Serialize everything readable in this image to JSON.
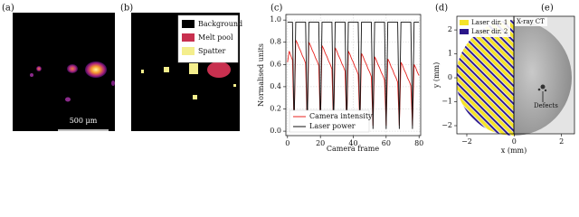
{
  "panel_a": {
    "label": "(a)",
    "scale_bar": "500 μm"
  },
  "panel_b": {
    "label": "(b)",
    "legend": [
      "Background",
      "Melt pool",
      "Spatter"
    ]
  },
  "chart_data": {
    "type": "line",
    "label": "(c)",
    "xlabel": "Camera frame",
    "ylabel": "Normalised units",
    "x": [
      0,
      1,
      2,
      3,
      4,
      5,
      6,
      7,
      8,
      9,
      10,
      11,
      12,
      13,
      14,
      15,
      16,
      17,
      18,
      19,
      20,
      21,
      22,
      23,
      24,
      25,
      26,
      27,
      28,
      29,
      30,
      31,
      32,
      33,
      34,
      35,
      36,
      37,
      38,
      39,
      40,
      41,
      42,
      43,
      44,
      45,
      46,
      47,
      48,
      49,
      50,
      51,
      52,
      53,
      54,
      55,
      56,
      57,
      58,
      59,
      60,
      61,
      62,
      63,
      64,
      65,
      66,
      67,
      68,
      69,
      70,
      71,
      72,
      73,
      74,
      75,
      76,
      77,
      78,
      79,
      80
    ],
    "series": [
      {
        "name": "Camera intensity",
        "color": "#e8231f",
        "values": [
          0.62,
          0.72,
          0.68,
          0.64,
          0.05,
          0.82,
          0.79,
          0.75,
          0.72,
          0.68,
          0.65,
          0.61,
          0.05,
          0.8,
          0.77,
          0.73,
          0.7,
          0.66,
          0.63,
          0.59,
          0.05,
          0.77,
          0.74,
          0.7,
          0.67,
          0.63,
          0.6,
          0.56,
          0.05,
          0.75,
          0.72,
          0.68,
          0.65,
          0.61,
          0.58,
          0.54,
          0.05,
          0.72,
          0.69,
          0.65,
          0.62,
          0.58,
          0.55,
          0.51,
          0.05,
          0.7,
          0.67,
          0.63,
          0.6,
          0.56,
          0.53,
          0.49,
          0.05,
          0.67,
          0.64,
          0.6,
          0.57,
          0.53,
          0.5,
          0.46,
          0.05,
          0.65,
          0.62,
          0.58,
          0.55,
          0.51,
          0.48,
          0.44,
          0.05,
          0.62,
          0.59,
          0.55,
          0.52,
          0.48,
          0.45,
          0.41,
          0.05,
          0.6,
          0.57,
          0.53,
          0.5
        ]
      },
      {
        "name": "Laser power",
        "color": "#111111",
        "values": [
          0.98,
          0.98,
          0.98,
          0.98,
          0.02,
          0.98,
          0.98,
          0.98,
          0.98,
          0.98,
          0.98,
          0.98,
          0.02,
          0.98,
          0.98,
          0.98,
          0.98,
          0.98,
          0.98,
          0.98,
          0.02,
          0.98,
          0.98,
          0.98,
          0.98,
          0.98,
          0.98,
          0.98,
          0.02,
          0.98,
          0.98,
          0.98,
          0.98,
          0.98,
          0.98,
          0.98,
          0.02,
          0.98,
          0.98,
          0.98,
          0.98,
          0.98,
          0.98,
          0.98,
          0.02,
          0.98,
          0.98,
          0.98,
          0.98,
          0.98,
          0.98,
          0.98,
          0.02,
          0.98,
          0.98,
          0.98,
          0.98,
          0.98,
          0.98,
          0.98,
          0.02,
          0.98,
          0.98,
          0.98,
          0.98,
          0.98,
          0.98,
          0.98,
          0.02,
          0.98,
          0.98,
          0.98,
          0.98,
          0.98,
          0.98,
          0.98,
          0.02,
          0.98,
          0.98,
          0.98,
          0.98
        ]
      }
    ],
    "xlim": [
      -1,
      81
    ],
    "ylim": [
      -0.04,
      1.05
    ],
    "xticks": [
      0,
      20,
      40,
      60,
      80
    ],
    "yticks": [
      {
        "value": 0,
        "label": "0.0"
      },
      0.2,
      0.4,
      0.6,
      0.8,
      {
        "value": 1,
        "label": "1.0"
      }
    ],
    "grid": true,
    "legend": "lower left"
  },
  "panel_d": {
    "label": "(d)",
    "legend": [
      "Laser dir. 1",
      "Laser dir. 2"
    ],
    "xlabel": "x (mm)",
    "ylabel": "y (mm)",
    "xlim": [
      -2.42,
      2.55
    ],
    "ylim": [
      -2.34,
      2.57
    ],
    "xticks": [
      {
        "value": -2,
        "label": "−2"
      },
      0,
      2
    ],
    "yticks": [
      2,
      1,
      0,
      {
        "value": -1,
        "label": "−1"
      },
      {
        "value": -2,
        "label": "−2"
      }
    ]
  },
  "panel_e": {
    "label": "(e)",
    "title": "X-ray CT",
    "annotation": "Defects"
  }
}
